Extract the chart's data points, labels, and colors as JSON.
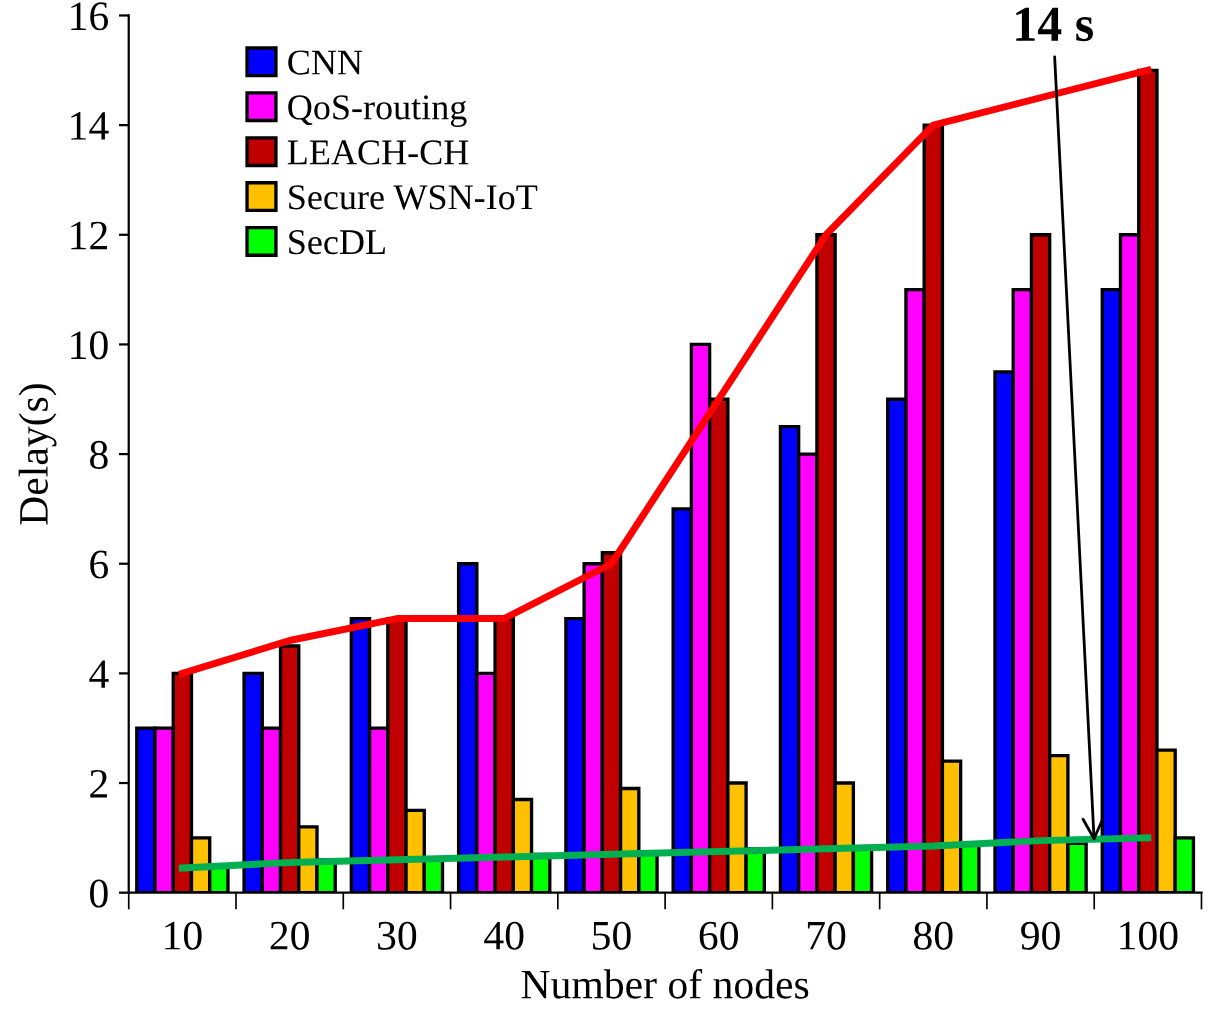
{
  "chart_data": {
    "type": "bar",
    "xlabel": "Number of nodes",
    "ylabel": "Delay(s)",
    "categories": [
      "10",
      "20",
      "30",
      "40",
      "50",
      "60",
      "70",
      "80",
      "90",
      "100"
    ],
    "series": [
      {
        "name": "CNN",
        "color": "#0000ff",
        "values": [
          3,
          4,
          5,
          6,
          5,
          7,
          8.5,
          9,
          9.5,
          11
        ]
      },
      {
        "name": "QoS-routing",
        "color": "#ff00ff",
        "values": [
          3,
          3,
          3,
          4,
          6,
          10,
          8,
          11,
          11,
          12
        ]
      },
      {
        "name": "LEACH-CH",
        "color": "#c00000",
        "values": [
          4,
          4.5,
          5,
          5,
          6.2,
          9,
          12,
          14,
          12,
          15
        ]
      },
      {
        "name": "Secure WSN-IoT",
        "color": "#ffc000",
        "values": [
          1,
          1.2,
          1.5,
          1.7,
          1.9,
          2,
          2,
          2.4,
          2.5,
          2.6
        ]
      },
      {
        "name": "SecDL",
        "color": "#00ff00",
        "values": [
          0.5,
          0.6,
          0.6,
          0.7,
          0.7,
          0.8,
          0.8,
          0.9,
          0.9,
          1.0
        ]
      },
      {
        "type": "line",
        "color": "#ff0000",
        "x": [
          "10",
          "20",
          "30",
          "40",
          "50",
          "70",
          "80",
          "100"
        ],
        "values": [
          4,
          4.6,
          5,
          5,
          6,
          12,
          14,
          15
        ]
      },
      {
        "type": "line",
        "color": "#00b050",
        "x": [
          "10",
          "20",
          "30",
          "40",
          "50",
          "60",
          "70",
          "80",
          "90",
          "100"
        ],
        "values": [
          0.45,
          0.55,
          0.6,
          0.65,
          0.7,
          0.75,
          0.8,
          0.85,
          0.95,
          1.0
        ]
      }
    ],
    "annotations": [
      "14 s"
    ],
    "ylim": [
      0,
      16
    ],
    "yticks": [
      0,
      2,
      4,
      6,
      8,
      10,
      12,
      14,
      16
    ],
    "grid": false,
    "legend": "top left"
  }
}
